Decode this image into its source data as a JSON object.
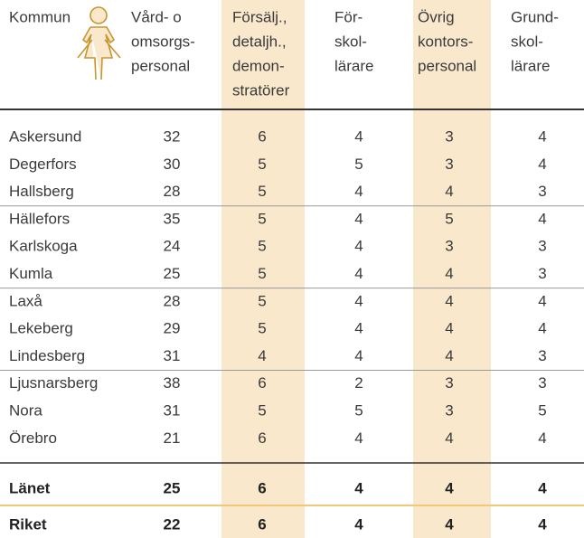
{
  "table": {
    "columns": [
      [
        "Kommun"
      ],
      [
        "Vård- o",
        "omsorgs-",
        "personal"
      ],
      [
        "Försälj.,",
        "detaljh.,",
        "demon-",
        "stratörer"
      ],
      [
        "För-",
        "skol-",
        "lärare"
      ],
      [
        "Övrig",
        "kontors-",
        "personal"
      ],
      [
        "Grund-",
        "skol-",
        "lärare"
      ]
    ],
    "rows": [
      [
        "Askersund",
        32,
        6,
        4,
        3,
        4
      ],
      [
        "Degerfors",
        30,
        5,
        5,
        3,
        4
      ],
      [
        "Hallsberg",
        28,
        5,
        4,
        4,
        3
      ],
      [
        "Hällefors",
        35,
        5,
        4,
        5,
        4
      ],
      [
        "Karlskoga",
        24,
        5,
        4,
        3,
        3
      ],
      [
        "Kumla",
        25,
        5,
        4,
        4,
        3
      ],
      [
        "Laxå",
        28,
        5,
        4,
        4,
        4
      ],
      [
        "Lekeberg",
        29,
        5,
        4,
        4,
        4
      ],
      [
        "Lindesberg",
        31,
        4,
        4,
        4,
        3
      ],
      [
        "Ljusnarsberg",
        38,
        6,
        2,
        3,
        3
      ],
      [
        "Nora",
        31,
        5,
        5,
        3,
        5
      ],
      [
        "Örebro",
        21,
        6,
        4,
        4,
        4
      ]
    ],
    "totals": [
      [
        "Länet",
        25,
        6,
        4,
        4,
        4
      ],
      [
        "Riket",
        22,
        6,
        4,
        4,
        4
      ]
    ]
  }
}
